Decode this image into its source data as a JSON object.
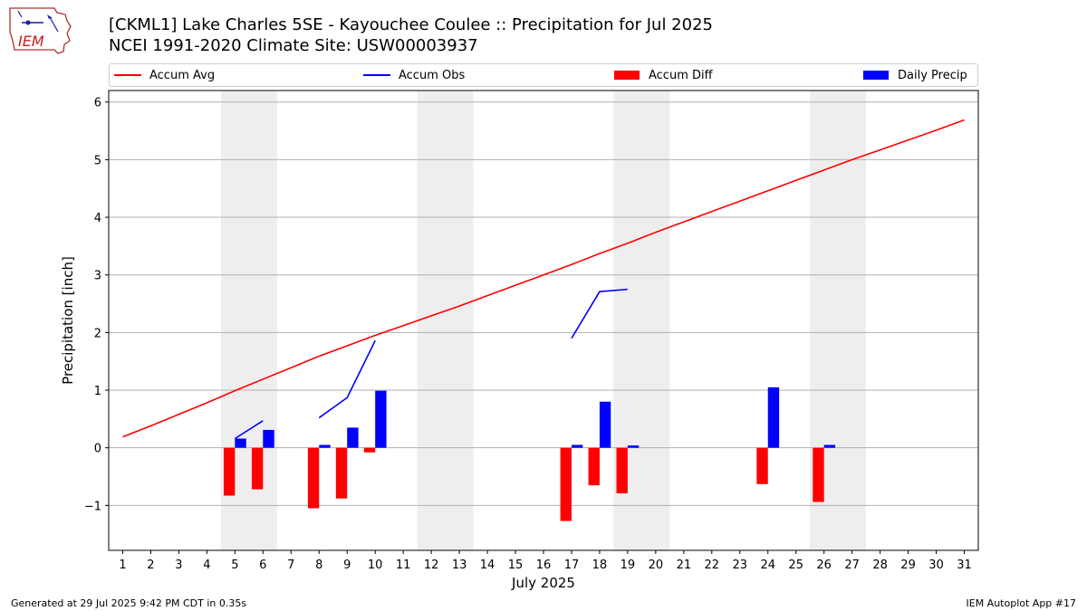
{
  "header": {
    "title_line1": "[CKML1] Lake Charles 5SE - Kayouchee Coulee :: Precipitation for Jul 2025",
    "title_line2": "NCEI 1991-2020 Climate Site: USW00003937"
  },
  "logo": {
    "text": "IEM"
  },
  "legend": {
    "accum_avg": "Accum Avg",
    "accum_obs": "Accum Obs",
    "accum_diff": "Accum Diff",
    "daily_precip": "Daily Precip"
  },
  "footer": {
    "left": "Generated at 29 Jul 2025 9:42 PM CDT in 0.35s",
    "right": "IEM Autoplot App #17"
  },
  "colors": {
    "avg": "#ff0000",
    "obs": "#0000ff",
    "diff": "#ff0000",
    "daily": "#0000ff",
    "weekend": "#eeeeee",
    "grid": "#b0b0b0"
  },
  "chart_data": {
    "type": "bar",
    "title": "[CKML1] Lake Charles 5SE - Kayouchee Coulee :: Precipitation for Jul 2025",
    "xlabel": "July 2025",
    "ylabel": "Precipitation [inch]",
    "xlim": [
      0.5,
      31.5
    ],
    "ylim": [
      -1.78,
      6.2
    ],
    "yticks": [
      -1,
      0,
      1,
      2,
      3,
      4,
      5,
      6
    ],
    "ytick_labels": [
      "−1",
      "0",
      "1",
      "2",
      "3",
      "4",
      "5",
      "6"
    ],
    "xticks": [
      1,
      2,
      3,
      4,
      5,
      6,
      7,
      8,
      9,
      10,
      11,
      12,
      13,
      14,
      15,
      16,
      17,
      18,
      19,
      20,
      21,
      22,
      23,
      24,
      25,
      26,
      27,
      28,
      29,
      30,
      31
    ],
    "xtick_labels": [
      "1",
      "2",
      "3",
      "4",
      "5",
      "6",
      "7",
      "8",
      "9",
      "10",
      "11",
      "12",
      "13",
      "14",
      "15",
      "16",
      "17",
      "18",
      "19",
      "20",
      "21",
      "22",
      "23",
      "24",
      "25",
      "26",
      "27",
      "28",
      "29",
      "30",
      "31"
    ],
    "weekend_spans": [
      [
        4.5,
        6.5
      ],
      [
        11.5,
        13.5
      ],
      [
        18.5,
        20.5
      ],
      [
        25.5,
        27.5
      ]
    ],
    "series": [
      {
        "name": "Accum Avg",
        "kind": "line",
        "points": [
          [
            1,
            0.19
          ],
          [
            2,
            0.38
          ],
          [
            3,
            0.58
          ],
          [
            4,
            0.78
          ],
          [
            5,
            0.99
          ],
          [
            6,
            1.19
          ],
          [
            7,
            1.39
          ],
          [
            8,
            1.59
          ],
          [
            9,
            1.77
          ],
          [
            10,
            1.95
          ],
          [
            11,
            2.12
          ],
          [
            12,
            2.29
          ],
          [
            13,
            2.46
          ],
          [
            14,
            2.64
          ],
          [
            15,
            2.82
          ],
          [
            16,
            3.0
          ],
          [
            17,
            3.18
          ],
          [
            18,
            3.37
          ],
          [
            19,
            3.55
          ],
          [
            20,
            3.74
          ],
          [
            21,
            3.92
          ],
          [
            22,
            4.1
          ],
          [
            23,
            4.28
          ],
          [
            24,
            4.46
          ],
          [
            25,
            4.64
          ],
          [
            26,
            4.82
          ],
          [
            27,
            5.0
          ],
          [
            28,
            5.17
          ],
          [
            29,
            5.34
          ],
          [
            30,
            5.51
          ],
          [
            31,
            5.69
          ]
        ]
      },
      {
        "name": "Accum Obs",
        "kind": "line",
        "segments": [
          [
            [
              5,
              0.16
            ],
            [
              6,
              0.47
            ]
          ],
          [
            [
              8,
              0.52
            ],
            [
              9,
              0.87
            ],
            [
              10,
              1.86
            ]
          ],
          [
            [
              17,
              1.9
            ],
            [
              18,
              2.71
            ],
            [
              19,
              2.75
            ]
          ]
        ]
      },
      {
        "name": "Accum Diff",
        "kind": "bar",
        "points": [
          [
            5,
            -0.83
          ],
          [
            6,
            -0.72
          ],
          [
            8,
            -1.05
          ],
          [
            9,
            -0.88
          ],
          [
            10,
            -0.08
          ],
          [
            17,
            -1.27
          ],
          [
            18,
            -0.65
          ],
          [
            19,
            -0.79
          ],
          [
            24,
            -0.63
          ],
          [
            26,
            -0.94
          ]
        ]
      },
      {
        "name": "Daily Precip",
        "kind": "bar",
        "points": [
          [
            5,
            0.16
          ],
          [
            6,
            0.31
          ],
          [
            8,
            0.05
          ],
          [
            9,
            0.35
          ],
          [
            10,
            0.99
          ],
          [
            17,
            0.05
          ],
          [
            18,
            0.8
          ],
          [
            19,
            0.04
          ],
          [
            24,
            1.05
          ],
          [
            26,
            0.05
          ]
        ]
      }
    ]
  }
}
